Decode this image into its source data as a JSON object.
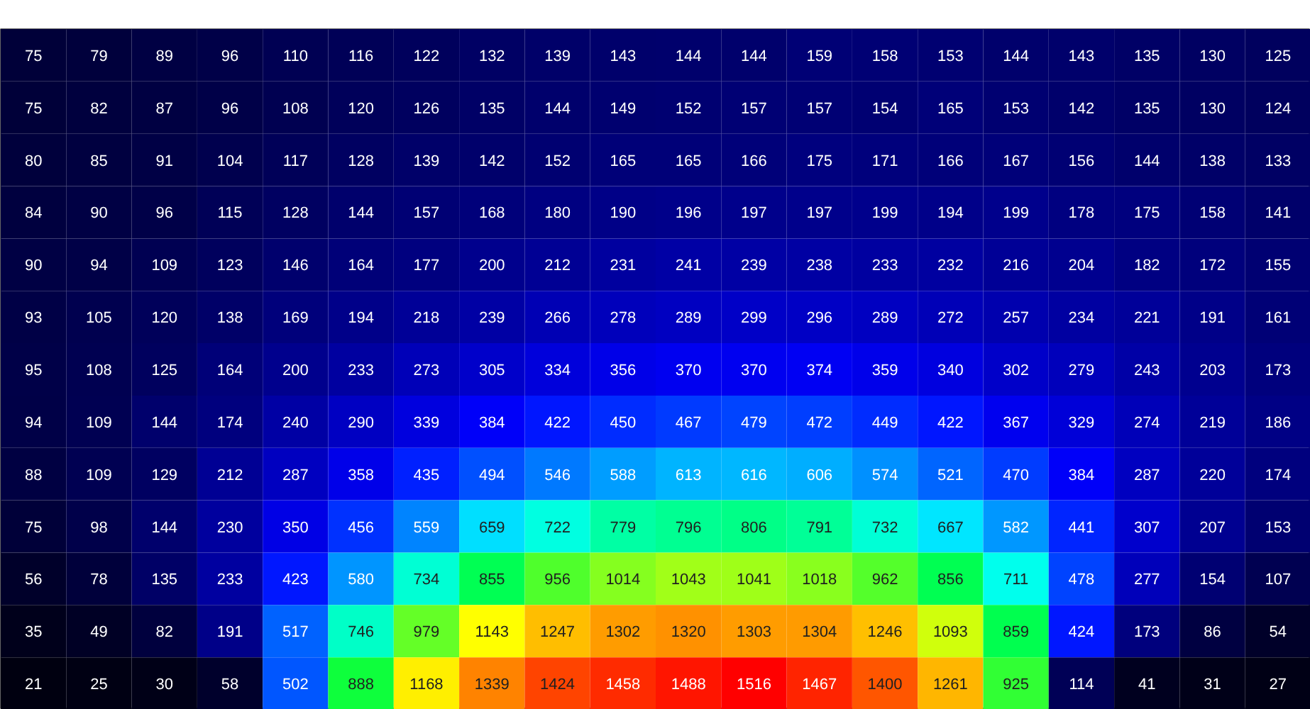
{
  "chart_data": {
    "type": "heatmap",
    "categories": [
      null,
      null,
      null,
      null,
      null,
      null,
      null,
      null,
      null,
      null,
      null,
      null,
      null,
      null,
      null,
      null,
      null,
      null,
      null,
      null
    ],
    "y_categories": [
      null,
      null,
      null,
      null,
      null,
      null,
      null,
      null,
      null,
      null,
      null,
      null,
      null
    ],
    "cells": [
      [
        75,
        79,
        89,
        96,
        110,
        116,
        122,
        132,
        139,
        143,
        144,
        144,
        159,
        158,
        153,
        144,
        143,
        135,
        130,
        125
      ],
      [
        75,
        82,
        87,
        96,
        108,
        120,
        126,
        135,
        144,
        149,
        152,
        157,
        157,
        154,
        165,
        153,
        142,
        135,
        130,
        124
      ],
      [
        80,
        85,
        91,
        104,
        117,
        128,
        139,
        142,
        152,
        165,
        165,
        166,
        175,
        171,
        166,
        167,
        156,
        144,
        138,
        133
      ],
      [
        84,
        90,
        96,
        115,
        128,
        144,
        157,
        168,
        180,
        190,
        196,
        197,
        197,
        199,
        194,
        199,
        178,
        175,
        158,
        141
      ],
      [
        90,
        94,
        109,
        123,
        146,
        164,
        177,
        200,
        212,
        231,
        241,
        239,
        238,
        233,
        232,
        216,
        204,
        182,
        172,
        155
      ],
      [
        93,
        105,
        120,
        138,
        169,
        194,
        218,
        239,
        266,
        278,
        289,
        299,
        296,
        289,
        272,
        257,
        234,
        221,
        191,
        161
      ],
      [
        95,
        108,
        125,
        164,
        200,
        233,
        273,
        305,
        334,
        356,
        370,
        370,
        374,
        359,
        340,
        302,
        279,
        243,
        203,
        173
      ],
      [
        94,
        109,
        144,
        174,
        240,
        290,
        339,
        384,
        422,
        450,
        467,
        479,
        472,
        449,
        422,
        367,
        329,
        274,
        219,
        186
      ],
      [
        88,
        109,
        129,
        212,
        287,
        358,
        435,
        494,
        546,
        588,
        613,
        616,
        606,
        574,
        521,
        470,
        384,
        287,
        220,
        174
      ],
      [
        75,
        98,
        144,
        230,
        350,
        456,
        559,
        659,
        722,
        779,
        796,
        806,
        791,
        732,
        667,
        582,
        441,
        307,
        207,
        153
      ],
      [
        56,
        78,
        135,
        233,
        423,
        580,
        734,
        855,
        956,
        1014,
        1043,
        1041,
        1018,
        962,
        856,
        711,
        478,
        277,
        154,
        107
      ],
      [
        35,
        49,
        82,
        191,
        517,
        746,
        979,
        1143,
        1247,
        1302,
        1320,
        1303,
        1304,
        1246,
        1093,
        859,
        424,
        173,
        86,
        54
      ],
      [
        21,
        25,
        30,
        58,
        502,
        888,
        1168,
        1339,
        1424,
        1458,
        1488,
        1516,
        1467,
        1400,
        1261,
        925,
        114,
        41,
        31,
        27
      ]
    ],
    "data_labels": true
  }
}
